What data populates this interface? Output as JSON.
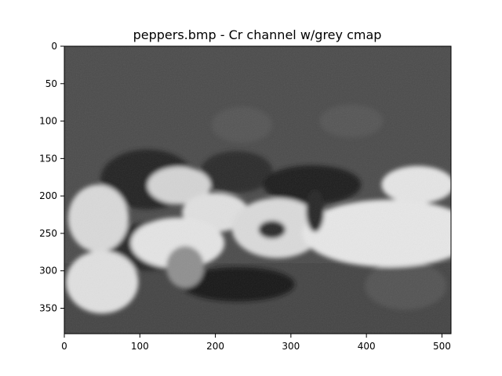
{
  "chart_data": {
    "type": "heatmap",
    "title": "peppers.bmp - Cr channel w/grey cmap",
    "xlabel": "",
    "ylabel": "",
    "colormap": "grey",
    "xlim": [
      0,
      512
    ],
    "ylim": [
      384,
      0
    ],
    "x_ticks": [
      0,
      100,
      200,
      300,
      400,
      500
    ],
    "y_ticks": [
      0,
      50,
      100,
      150,
      200,
      250,
      300,
      350
    ],
    "image": {
      "source": "peppers.bmp",
      "channel": "Cr",
      "width": 512,
      "height": 384,
      "background_level": "#4b4b4b"
    },
    "regions": [
      {
        "name": "upper-left-dark-pepper",
        "shape": "ellipse",
        "cx": 110,
        "cy": 178,
        "rx": 62,
        "ry": 40,
        "fill": "#232323"
      },
      {
        "name": "upper-center-dark-pepper",
        "shape": "ellipse",
        "cx": 228,
        "cy": 168,
        "rx": 48,
        "ry": 28,
        "fill": "#2b2b2b"
      },
      {
        "name": "upper-center-mid-pepper",
        "shape": "ellipse",
        "cx": 235,
        "cy": 105,
        "rx": 40,
        "ry": 24,
        "fill": "#555555"
      },
      {
        "name": "upper-right-mid-pepper",
        "shape": "ellipse",
        "cx": 380,
        "cy": 100,
        "rx": 42,
        "ry": 22,
        "fill": "#555555"
      },
      {
        "name": "center-dark-pepper",
        "shape": "ellipse",
        "cx": 328,
        "cy": 185,
        "rx": 65,
        "ry": 26,
        "fill": "#1b1b1b"
      },
      {
        "name": "left-mid-dark-pepper",
        "shape": "ellipse",
        "cx": 110,
        "cy": 268,
        "rx": 58,
        "ry": 32,
        "fill": "#262626"
      },
      {
        "name": "center-bottom-dark-pepper",
        "shape": "ellipse",
        "cx": 230,
        "cy": 318,
        "rx": 75,
        "ry": 23,
        "fill": "#141414"
      },
      {
        "name": "right-bottom-mid-pepper",
        "shape": "ellipse",
        "cx": 452,
        "cy": 320,
        "rx": 54,
        "ry": 32,
        "fill": "#535353"
      },
      {
        "name": "far-left-light-pepper",
        "shape": "ellipse",
        "cx": 45,
        "cy": 230,
        "rx": 40,
        "ry": 45,
        "fill": "#d9d9d9"
      },
      {
        "name": "upper-left-light-pepper",
        "shape": "ellipse",
        "cx": 152,
        "cy": 186,
        "rx": 42,
        "ry": 25,
        "fill": "#d4d4d4"
      },
      {
        "name": "center-left-light-pepper",
        "shape": "ellipse",
        "cx": 200,
        "cy": 222,
        "rx": 44,
        "ry": 26,
        "fill": "#e0e0e0"
      },
      {
        "name": "center-light-pepper",
        "shape": "ellipse",
        "cx": 282,
        "cy": 243,
        "rx": 60,
        "ry": 40,
        "fill": "#dadada"
      },
      {
        "name": "right-large-light-pepper",
        "shape": "ellipse",
        "cx": 430,
        "cy": 250,
        "rx": 115,
        "ry": 45,
        "fill": "#e7e7e7"
      },
      {
        "name": "upper-right-light-pepper",
        "shape": "ellipse",
        "cx": 468,
        "cy": 185,
        "rx": 48,
        "ry": 25,
        "fill": "#e5e5e5"
      },
      {
        "name": "lower-left-light-pepper",
        "shape": "ellipse",
        "cx": 50,
        "cy": 315,
        "rx": 48,
        "ry": 42,
        "fill": "#e0e0e0"
      },
      {
        "name": "center-lower-light-pepper",
        "shape": "ellipse",
        "cx": 150,
        "cy": 263,
        "rx": 62,
        "ry": 34,
        "fill": "#e4e4e4"
      },
      {
        "name": "small-center-grey-pepper",
        "shape": "ellipse",
        "cx": 160,
        "cy": 295,
        "rx": 25,
        "ry": 28,
        "fill": "#8f8f8f"
      },
      {
        "name": "center-small-dark-pepper",
        "shape": "ellipse",
        "cx": 275,
        "cy": 245,
        "rx": 18,
        "ry": 12,
        "fill": "#2c2c2c"
      },
      {
        "name": "right-center-dark-stem",
        "shape": "ellipse",
        "cx": 332,
        "cy": 220,
        "rx": 12,
        "ry": 28,
        "fill": "#262626"
      }
    ]
  }
}
